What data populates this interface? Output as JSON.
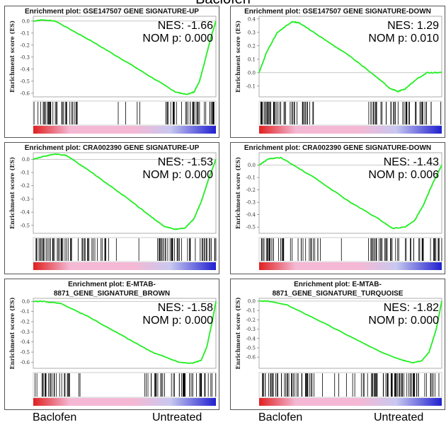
{
  "heading": "Baclofen",
  "bottom_labels": [
    "Baclofen",
    "Untreated",
    "Baclofen",
    "Untreated"
  ],
  "colors": {
    "curve": "#22ee22",
    "hits": "#000000",
    "bar_red": "#e02020",
    "bar_pink": "#f4b8d4",
    "bar_lavender": "#c8c8f0",
    "bar_blue": "#2020d0"
  },
  "ylabel": "Enrichment score (ES)",
  "chart_data": [
    {
      "type": "line",
      "title": [
        "Enrichment plot: GSE147507 GENE SIGNATURE-UP"
      ],
      "ylabel": "Enrichment score (ES)",
      "ticks": [
        "0.0",
        "-0.1",
        "-0.2",
        "-0.3",
        "-0.4",
        "-0.5",
        "-0.6"
      ],
      "ylim": [
        -0.63,
        0.04
      ],
      "x": [
        0,
        0.05,
        0.12,
        0.3,
        0.5,
        0.65,
        0.78,
        0.84,
        0.88,
        0.91,
        0.94,
        0.97,
        1.0
      ],
      "y": [
        0.0,
        0.01,
        0.0,
        -0.15,
        -0.33,
        -0.47,
        -0.59,
        -0.61,
        -0.59,
        -0.5,
        -0.33,
        -0.15,
        0.0
      ],
      "nes": "NES: -1.66",
      "pval": "NOM p: 0.000",
      "hits": [
        [
          0,
          0.25,
          0.5
        ],
        [
          0.39,
          0.42,
          0.04
        ],
        [
          0.42,
          0.5,
          0.05
        ],
        [
          0.5,
          0.72,
          0.05
        ],
        [
          0.72,
          1.0,
          0.55
        ]
      ]
    },
    {
      "type": "line",
      "title": [
        "Enrichment plot: GSE147507 GENE SIGNATURE-DOWN"
      ],
      "ylabel": "Enrichment score (ES)",
      "ticks": [
        "0.4",
        "0.3",
        "0.2",
        "0.1",
        "0.0",
        "-0.1"
      ],
      "ylim": [
        -0.18,
        0.42
      ],
      "x": [
        0,
        0.04,
        0.1,
        0.18,
        0.22,
        0.3,
        0.5,
        0.65,
        0.72,
        0.76,
        0.8,
        0.86,
        0.92,
        1.0
      ],
      "y": [
        0.0,
        0.15,
        0.3,
        0.38,
        0.37,
        0.3,
        0.12,
        -0.04,
        -0.12,
        -0.14,
        -0.12,
        -0.05,
        0.0,
        0.0
      ],
      "nes": "NES: 1.29",
      "pval": "NOM p: 0.010",
      "hits": [
        [
          0,
          0.3,
          0.6
        ],
        [
          0.3,
          0.6,
          0.0
        ],
        [
          0.6,
          0.95,
          0.5
        ],
        [
          0.95,
          1.0,
          0.05
        ]
      ]
    },
    {
      "type": "line",
      "title": [
        "Enrichment plot: CRA002390 GENE SIGNATURE-UP"
      ],
      "ylabel": "Enrichment score (ES)",
      "ticks": [
        "0.0",
        "-0.1",
        "-0.2",
        "-0.3",
        "-0.4",
        "-0.5"
      ],
      "ylim": [
        -0.56,
        0.05
      ],
      "x": [
        0,
        0.05,
        0.12,
        0.18,
        0.3,
        0.5,
        0.65,
        0.72,
        0.78,
        0.83,
        0.88,
        0.92,
        0.96,
        1.0
      ],
      "y": [
        0.0,
        0.02,
        0.04,
        0.03,
        -0.08,
        -0.28,
        -0.44,
        -0.51,
        -0.53,
        -0.52,
        -0.45,
        -0.32,
        -0.15,
        0.0
      ],
      "nes": "NES: -1.53",
      "pval": "NOM p: 0.000",
      "hits": [
        [
          0,
          0.42,
          0.5
        ],
        [
          0.42,
          0.55,
          0.04
        ],
        [
          0.55,
          0.68,
          0.02
        ],
        [
          0.68,
          1.0,
          0.5
        ]
      ]
    },
    {
      "type": "line",
      "title": [
        "Enrichment plot: CRA002390 GENE SIGNATURE-DOWN"
      ],
      "ylabel": "Enrichment score (ES)",
      "ticks": [
        "0.0",
        "-0.1",
        "-0.2",
        "-0.3",
        "-0.4",
        "-0.5"
      ],
      "ylim": [
        -0.55,
        0.1
      ],
      "x": [
        0,
        0.05,
        0.12,
        0.3,
        0.5,
        0.65,
        0.73,
        0.8,
        0.85,
        0.9,
        0.95,
        1.0
      ],
      "y": [
        0.0,
        0.05,
        0.06,
        -0.1,
        -0.3,
        -0.43,
        -0.51,
        -0.5,
        -0.45,
        -0.32,
        -0.15,
        0.0
      ],
      "nes": "NES: -1.43",
      "pval": "NOM p: 0.006",
      "hits": [
        [
          0,
          0.35,
          0.4
        ],
        [
          0.35,
          0.6,
          0.03
        ],
        [
          0.6,
          1.0,
          0.45
        ]
      ]
    },
    {
      "type": "line",
      "title": [
        "Enrichment plot: E-MTAB-",
        "8871_GENE_SIGNATURE_BROWN"
      ],
      "ylabel": "Enrichment score (ES)",
      "ticks": [
        "0.0",
        "-0.1",
        "-0.2",
        "-0.3",
        "-0.4",
        "-0.5",
        "-0.6"
      ],
      "ylim": [
        -0.66,
        0.03
      ],
      "x": [
        0,
        0.05,
        0.15,
        0.3,
        0.5,
        0.65,
        0.8,
        0.87,
        0.92,
        0.95,
        0.98,
        1.0
      ],
      "y": [
        0.0,
        0.0,
        -0.02,
        -0.15,
        -0.35,
        -0.5,
        -0.6,
        -0.61,
        -0.58,
        -0.45,
        -0.2,
        0.0
      ],
      "nes": "NES: -1.58",
      "pval": "NOM p: 0.000",
      "hits": [
        [
          0,
          0.2,
          0.5
        ],
        [
          0.2,
          0.6,
          0.02
        ],
        [
          0.6,
          1.0,
          0.45
        ]
      ]
    },
    {
      "type": "line",
      "title": [
        "Enrichment plot: E-MTAB-",
        "8871_GENE_SIGNATURE_TURQUOISE"
      ],
      "ylabel": "Enrichment score (ES)",
      "ticks": [
        "0.0",
        "-0.1",
        "-0.2",
        "-0.3",
        "-0.4",
        "-0.5",
        "-0.6"
      ],
      "ylim": [
        -0.72,
        0.03
      ],
      "x": [
        0,
        0.05,
        0.15,
        0.3,
        0.5,
        0.65,
        0.78,
        0.84,
        0.89,
        0.93,
        0.97,
        1.0
      ],
      "y": [
        0.0,
        0.0,
        -0.04,
        -0.18,
        -0.38,
        -0.53,
        -0.63,
        -0.66,
        -0.64,
        -0.55,
        -0.3,
        0.0
      ],
      "nes": "NES: -1.82",
      "pval": "NOM p: 0.000",
      "hits": [
        [
          0,
          0.3,
          0.5
        ],
        [
          0.3,
          0.55,
          0.1
        ],
        [
          0.55,
          1.0,
          0.55
        ]
      ]
    }
  ]
}
